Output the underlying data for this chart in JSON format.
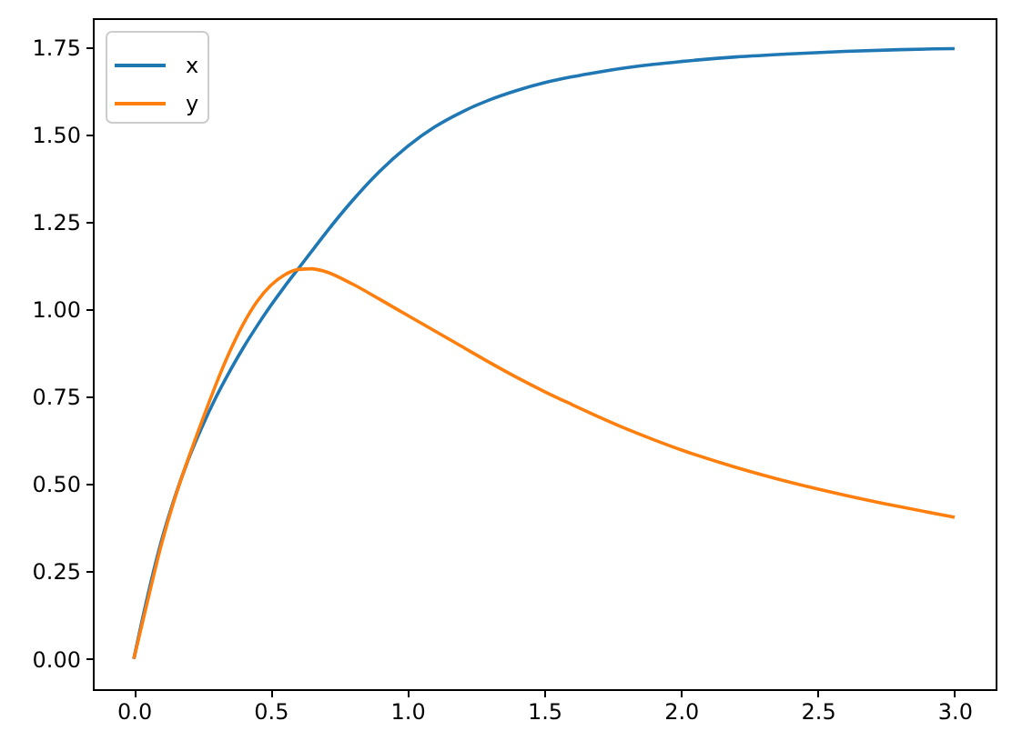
{
  "chart_data": {
    "type": "line",
    "x": [
      0,
      0.05,
      0.1,
      0.15,
      0.2,
      0.25,
      0.3,
      0.35,
      0.4,
      0.45,
      0.5,
      0.55,
      0.6,
      0.65,
      0.7,
      0.8,
      0.9,
      1.0,
      1.1,
      1.2,
      1.3,
      1.4,
      1.5,
      1.6,
      1.7,
      1.8,
      1.9,
      2.0,
      2.2,
      2.4,
      2.6,
      2.8,
      3.0
    ],
    "series": [
      {
        "name": "x",
        "color": "#1f77b4",
        "values": [
          0,
          0.178,
          0.335,
          0.463,
          0.572,
          0.665,
          0.748,
          0.822,
          0.89,
          0.952,
          1.01,
          1.064,
          1.115,
          1.166,
          1.217,
          1.312,
          1.396,
          1.466,
          1.522,
          1.565,
          1.599,
          1.626,
          1.648,
          1.665,
          1.679,
          1.691,
          1.701,
          1.709,
          1.722,
          1.731,
          1.738,
          1.743,
          1.746
        ]
      },
      {
        "name": "y",
        "color": "#ff7f0e",
        "values": [
          0,
          0.165,
          0.325,
          0.46,
          0.575,
          0.682,
          0.785,
          0.878,
          0.958,
          1.022,
          1.068,
          1.098,
          1.114,
          1.116,
          1.108,
          1.072,
          1.028,
          0.983,
          0.938,
          0.893,
          0.848,
          0.805,
          0.765,
          0.728,
          0.692,
          0.658,
          0.627,
          0.598,
          0.548,
          0.505,
          0.468,
          0.435,
          0.405
        ]
      }
    ],
    "xlim": [
      -0.15,
      3.15
    ],
    "ylim": [
      -0.087,
      1.833
    ],
    "xticks": [
      {
        "value": 0,
        "label": "0.0"
      },
      0.5,
      {
        "value": 1,
        "label": "1.0"
      },
      1.5,
      {
        "value": 2,
        "label": "2.0"
      },
      2.5,
      {
        "value": 3,
        "label": "3.0"
      }
    ],
    "yticks": [
      {
        "value": 0,
        "label": "0.00"
      },
      0.25,
      {
        "value": 0.5,
        "label": "0.50"
      },
      0.75,
      {
        "value": 1,
        "label": "1.00"
      },
      1.25,
      {
        "value": 1.5,
        "label": "1.50"
      },
      1.75
    ],
    "grid": false,
    "legend": "top left"
  }
}
